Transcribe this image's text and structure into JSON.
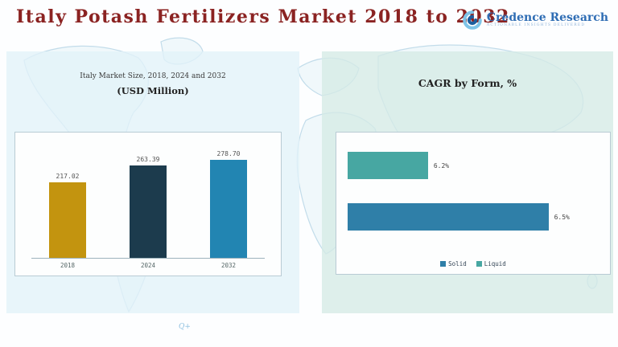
{
  "page": {
    "title": "Italy Potash Fertilizers Market 2018 to 2032",
    "map_mark": "Q+"
  },
  "logo": {
    "name": "Credence Research",
    "tagline": "Actionable Insights Delivered"
  },
  "left_panel": {
    "heading": "Italy Market Size, 2018, 2024 and 2032",
    "subheading": "(USD Million)"
  },
  "right_panel": {
    "heading": "CAGR by Form, %"
  },
  "chart_data": [
    {
      "type": "bar",
      "title": "Italy Market Size, 2018, 2024 and 2032 (USD Million)",
      "categories": [
        "2018",
        "2024",
        "2032"
      ],
      "values": [
        217.02,
        263.39,
        278.7
      ],
      "value_labels": [
        "217.02",
        "263.39",
        "278.70"
      ],
      "colors": [
        "#c3940f",
        "#1c3b4d",
        "#2285b2"
      ],
      "xlabel": "",
      "ylabel": "USD Million",
      "ylim": [
        0,
        300
      ],
      "grid": false,
      "legend_position": "none"
    },
    {
      "type": "bar",
      "orientation": "horizontal",
      "title": "CAGR by Form, %",
      "categories": [
        "Liquid",
        "Solid"
      ],
      "values": [
        6.2,
        6.5
      ],
      "value_labels": [
        "6.2%",
        "6.5%"
      ],
      "colors": [
        "#47a7a2",
        "#2f7fa8"
      ],
      "xlim": [
        6.0,
        6.55
      ],
      "grid": false,
      "legend_position": "bottom",
      "legend": [
        {
          "label": "Solid",
          "color": "#2f7fa8"
        },
        {
          "label": "Liquid",
          "color": "#47a7a2"
        }
      ]
    }
  ]
}
